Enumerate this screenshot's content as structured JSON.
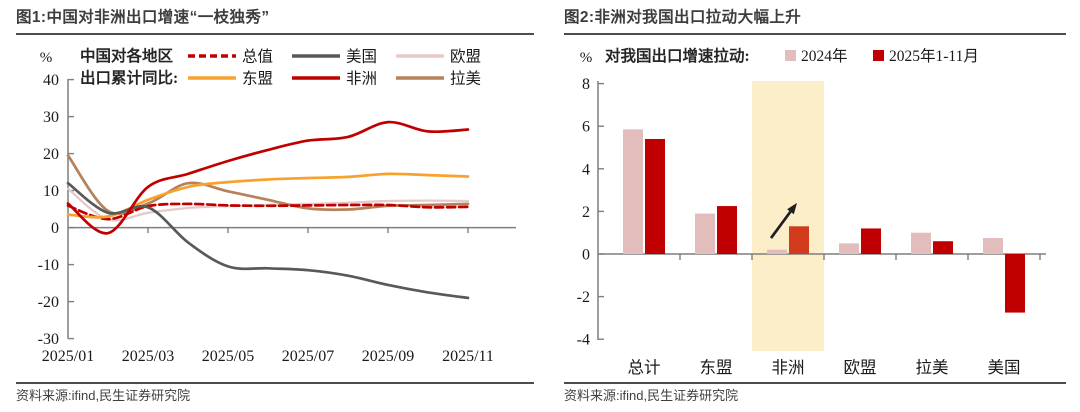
{
  "figure1": {
    "title": "图1:中国对非洲出口增速“一枝独秀”",
    "source": "资料来源:ifind,民生证券研究院"
  },
  "figure2": {
    "title": "图2:非洲对我国出口拉动大幅上升",
    "source": "资料来源:ifind,民生证券研究院"
  },
  "colors": {
    "axis": "#7f7f7f",
    "text": "#1a1a1a",
    "title_text": "#3d3d3d",
    "rule": "#4d4d4d"
  },
  "chart_data": [
    {
      "type": "line",
      "title": "图1:中国对非洲出口增速“一枝独秀”",
      "unit": "%",
      "legend_prefix_line1": "中国对各地区",
      "legend_prefix_line2": "出口累计同比:",
      "legend_position": "top",
      "grid": false,
      "x": [
        "2025/01",
        "2025/02",
        "2025/03",
        "2025/04",
        "2025/05",
        "2025/06",
        "2025/07",
        "2025/08",
        "2025/09",
        "2025/10",
        "2025/11"
      ],
      "x_tick_labels": [
        "2025/01",
        "2025/03",
        "2025/05",
        "2025/07",
        "2025/09",
        "2025/11"
      ],
      "x_labels_every": 2,
      "ylim": [
        -30,
        40
      ],
      "ytick_step": 10,
      "yticks": [
        40,
        30,
        20,
        10,
        0,
        -10,
        -20,
        -30
      ],
      "draw_order": [
        2,
        5,
        0,
        3,
        1,
        4
      ],
      "series": [
        {
          "id": "total",
          "name": "总值",
          "color": "#C00000",
          "dash": true,
          "values": [
            5.9,
            2.3,
            5.8,
            6.4,
            6.0,
            5.9,
            6.0,
            6.1,
            6.1,
            5.5,
            5.6
          ]
        },
        {
          "id": "us",
          "name": "美国",
          "color": "#595959",
          "dash": false,
          "values": [
            12.0,
            4.0,
            5.5,
            -4.0,
            -10.5,
            -11.0,
            -11.5,
            -13.0,
            -15.5,
            -17.5,
            -19.0
          ]
        },
        {
          "id": "eu",
          "name": "欧盟",
          "color": "#E6C9C9",
          "dash": false,
          "values": [
            10.5,
            2.2,
            4.0,
            5.3,
            5.8,
            6.1,
            6.4,
            6.7,
            7.2,
            7.3,
            7.2
          ]
        },
        {
          "id": "asean",
          "name": "东盟",
          "color": "#F8A22E",
          "dash": false,
          "values": [
            3.5,
            3.0,
            7.5,
            11.0,
            12.3,
            13.0,
            13.4,
            13.7,
            14.5,
            14.2,
            13.8
          ]
        },
        {
          "id": "africa",
          "name": "非洲",
          "color": "#C00000",
          "dash": false,
          "values": [
            6.5,
            -1.5,
            11.0,
            14.5,
            18.0,
            21.0,
            23.5,
            24.5,
            28.5,
            26.0,
            26.5
          ]
        },
        {
          "id": "latam",
          "name": "拉美",
          "color": "#B5825A",
          "dash": false,
          "values": [
            19.5,
            4.5,
            6.5,
            12.0,
            9.8,
            7.5,
            5.2,
            4.9,
            5.9,
            6.1,
            6.4
          ]
        }
      ]
    },
    {
      "type": "bar",
      "title": "图2:非洲对我国出口拉动大幅上升",
      "unit": "%",
      "legend_prefix": "对我国出口增速拉动:",
      "legend_position": "top",
      "grid": false,
      "categories": [
        "总计",
        "东盟",
        "非洲",
        "欧盟",
        "拉美",
        "美国"
      ],
      "ylim": [
        -4,
        8
      ],
      "ytick_step": 2,
      "yticks": [
        8,
        6,
        4,
        2,
        0,
        -2,
        -4
      ],
      "highlight_category": "非洲",
      "highlight_band_color": "#FCEEC9",
      "annotation_arrow": {
        "present": true,
        "color": "#1f1f1f",
        "at_category": "非洲",
        "from_value": 0.75,
        "to_value": 2.4
      },
      "series": [
        {
          "id": "y2024",
          "name": "2024年",
          "color": "#E3BCBC",
          "values": [
            5.85,
            1.9,
            0.2,
            0.5,
            1.0,
            0.75
          ]
        },
        {
          "id": "y2025",
          "name": "2025年1-11月",
          "color": "#C00000",
          "highlight_color": "#D13A1A",
          "values": [
            5.4,
            2.25,
            1.3,
            1.2,
            0.6,
            -2.75
          ]
        }
      ]
    }
  ]
}
